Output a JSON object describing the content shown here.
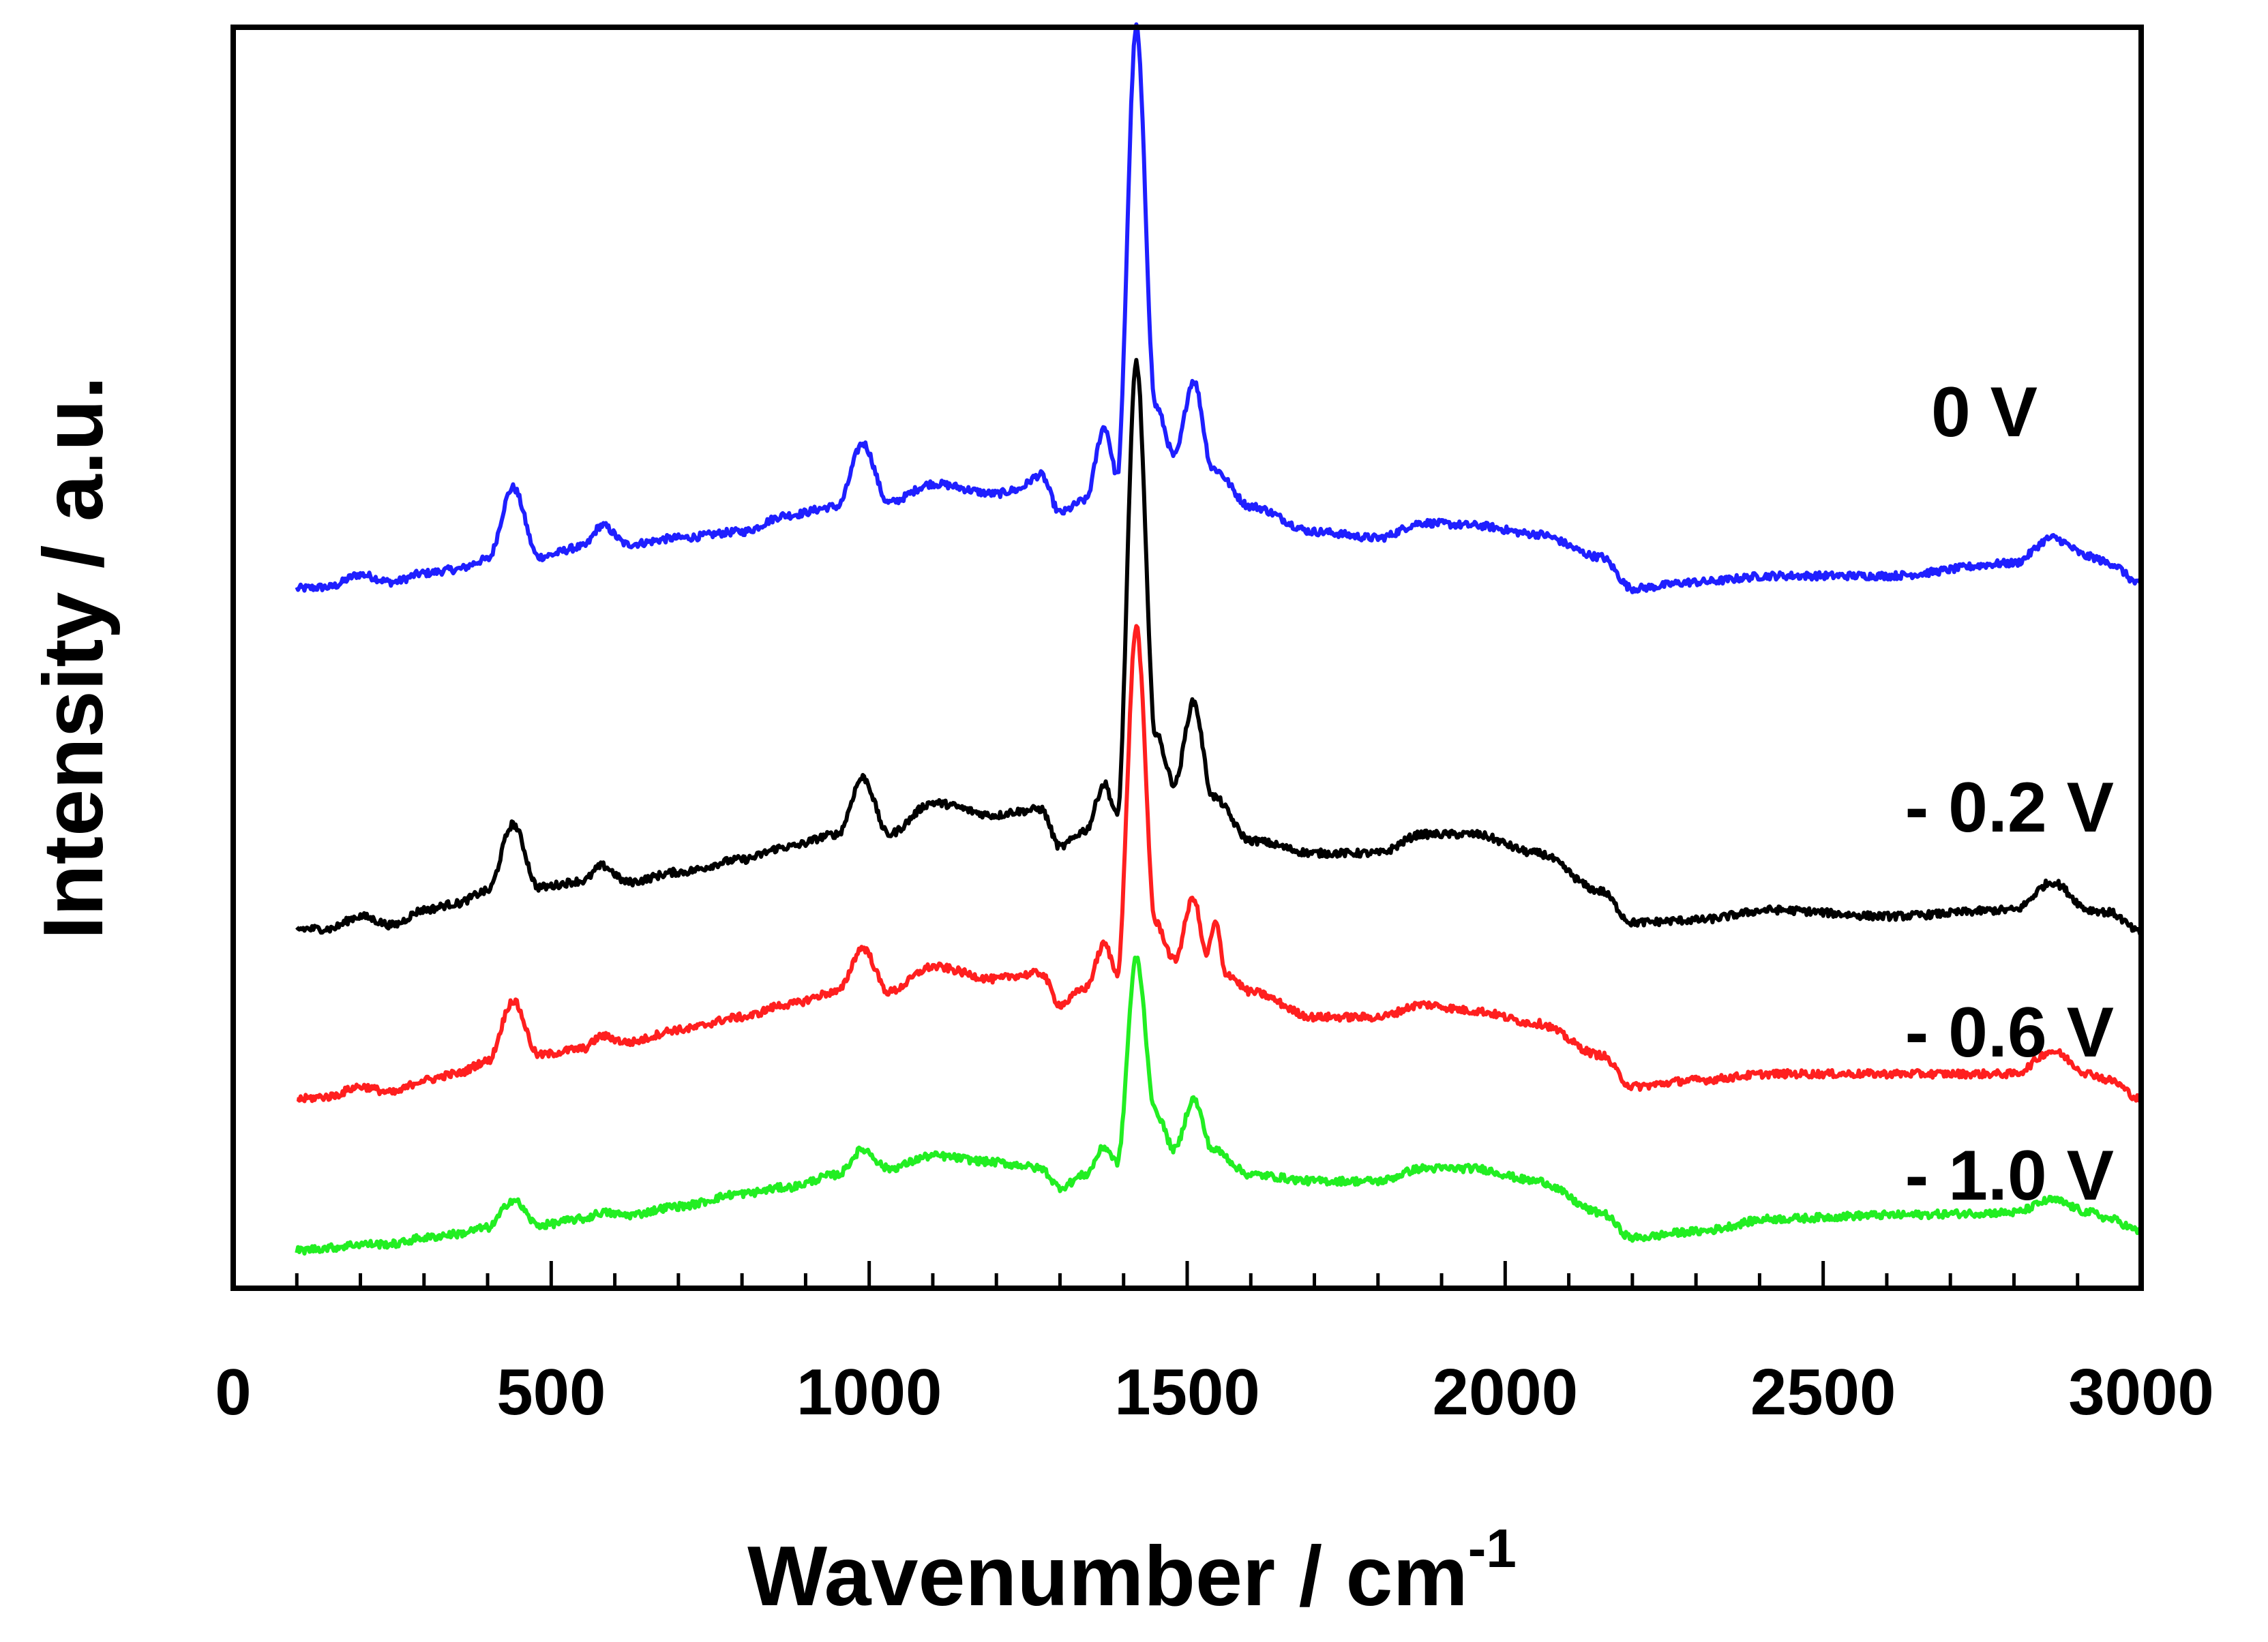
{
  "chart_data": {
    "type": "line",
    "title": "",
    "xlabel": "Wavenumber / cm",
    "xlabel_superscript": "-1",
    "ylabel": "Intensity / a.u.",
    "xlim": [
      0,
      3000
    ],
    "ylim": [
      0,
      1
    ],
    "x_ticks": [
      0,
      500,
      1000,
      1500,
      2000,
      2500,
      3000
    ],
    "x_tick_labels": [
      "0",
      "500",
      "1000",
      "1500",
      "2000",
      "2500",
      "3000"
    ],
    "x_minor_step": 100,
    "y_ticks_shown": false,
    "grid": false,
    "legend": "inline labels at right",
    "note": "Stacked (offset) Raman spectra; y values are relative intensities in axis fraction, curves span 100-3000 cm-1",
    "series": [
      {
        "name": "0 V",
        "color": "#1f1fff",
        "x": [
          100,
          150,
          200,
          250,
          300,
          350,
          400,
          440,
          480,
          550,
          580,
          620,
          700,
          800,
          870,
          950,
          990,
          1030,
          1100,
          1200,
          1230,
          1270,
          1300,
          1340,
          1370,
          1390,
          1420,
          1450,
          1480,
          1510,
          1540,
          1600,
          1700,
          1800,
          1870,
          1950,
          2050,
          2150,
          2200,
          2300,
          2420,
          2600,
          2800,
          2860,
          2920,
          2950,
          3000
        ],
        "y": [
          0.555,
          0.556,
          0.566,
          0.56,
          0.567,
          0.57,
          0.578,
          0.635,
          0.58,
          0.588,
          0.605,
          0.59,
          0.595,
          0.6,
          0.613,
          0.62,
          0.67,
          0.623,
          0.638,
          0.63,
          0.633,
          0.645,
          0.615,
          0.625,
          0.683,
          0.645,
          1.0,
          0.7,
          0.66,
          0.72,
          0.65,
          0.62,
          0.6,
          0.595,
          0.607,
          0.605,
          0.598,
          0.58,
          0.555,
          0.56,
          0.565,
          0.565,
          0.575,
          0.595,
          0.58,
          0.575,
          0.558
        ]
      },
      {
        "name": "- 0.2 V",
        "color": "#000000",
        "x": [
          100,
          150,
          200,
          250,
          300,
          350,
          400,
          440,
          480,
          550,
          580,
          620,
          700,
          800,
          870,
          950,
          990,
          1030,
          1100,
          1200,
          1230,
          1270,
          1300,
          1340,
          1370,
          1390,
          1420,
          1450,
          1480,
          1510,
          1540,
          1600,
          1700,
          1800,
          1870,
          1950,
          2050,
          2150,
          2200,
          2300,
          2420,
          2600,
          2800,
          2860,
          2920,
          2950,
          3000
        ],
        "y": [
          0.285,
          0.285,
          0.295,
          0.288,
          0.3,
          0.305,
          0.315,
          0.368,
          0.318,
          0.323,
          0.335,
          0.322,
          0.33,
          0.34,
          0.35,
          0.36,
          0.405,
          0.36,
          0.385,
          0.375,
          0.378,
          0.38,
          0.35,
          0.363,
          0.4,
          0.375,
          0.735,
          0.44,
          0.4,
          0.465,
          0.39,
          0.355,
          0.345,
          0.345,
          0.36,
          0.36,
          0.345,
          0.315,
          0.29,
          0.292,
          0.3,
          0.295,
          0.3,
          0.322,
          0.3,
          0.298,
          0.282
        ]
      },
      {
        "name": "- 0.6 V",
        "color": "#ff1f1f",
        "x": [
          100,
          150,
          200,
          250,
          300,
          350,
          400,
          440,
          480,
          550,
          580,
          620,
          700,
          800,
          870,
          950,
          990,
          1030,
          1100,
          1200,
          1230,
          1270,
          1300,
          1340,
          1370,
          1390,
          1420,
          1450,
          1480,
          1510,
          1530,
          1545,
          1560,
          1600,
          1700,
          1800,
          1870,
          1950,
          2050,
          2150,
          2200,
          2300,
          2420,
          2600,
          2800,
          2860,
          2920,
          2950,
          3000
        ],
        "y": [
          0.15,
          0.152,
          0.16,
          0.155,
          0.165,
          0.17,
          0.18,
          0.228,
          0.185,
          0.19,
          0.2,
          0.195,
          0.205,
          0.215,
          0.225,
          0.235,
          0.27,
          0.235,
          0.255,
          0.245,
          0.248,
          0.25,
          0.225,
          0.238,
          0.273,
          0.25,
          0.525,
          0.29,
          0.26,
          0.31,
          0.265,
          0.29,
          0.25,
          0.235,
          0.215,
          0.215,
          0.225,
          0.22,
          0.21,
          0.185,
          0.16,
          0.165,
          0.17,
          0.17,
          0.17,
          0.188,
          0.17,
          0.165,
          0.15
        ]
      },
      {
        "name": "- 1.0 V",
        "color": "#22ee22",
        "x": [
          100,
          150,
          200,
          250,
          300,
          350,
          400,
          440,
          480,
          550,
          580,
          620,
          700,
          800,
          870,
          950,
          990,
          1030,
          1100,
          1200,
          1230,
          1270,
          1300,
          1340,
          1370,
          1390,
          1420,
          1450,
          1480,
          1510,
          1540,
          1600,
          1700,
          1800,
          1870,
          1950,
          2050,
          2150,
          2200,
          2300,
          2420,
          2600,
          2800,
          2860,
          2920,
          2950,
          3000
        ],
        "y": [
          0.03,
          0.032,
          0.035,
          0.035,
          0.04,
          0.043,
          0.048,
          0.07,
          0.05,
          0.055,
          0.06,
          0.058,
          0.065,
          0.075,
          0.08,
          0.09,
          0.11,
          0.095,
          0.105,
          0.1,
          0.098,
          0.095,
          0.08,
          0.09,
          0.112,
          0.1,
          0.262,
          0.14,
          0.11,
          0.15,
          0.11,
          0.09,
          0.085,
          0.085,
          0.095,
          0.095,
          0.085,
          0.06,
          0.04,
          0.045,
          0.055,
          0.058,
          0.06,
          0.07,
          0.06,
          0.055,
          0.045
        ]
      }
    ]
  }
}
